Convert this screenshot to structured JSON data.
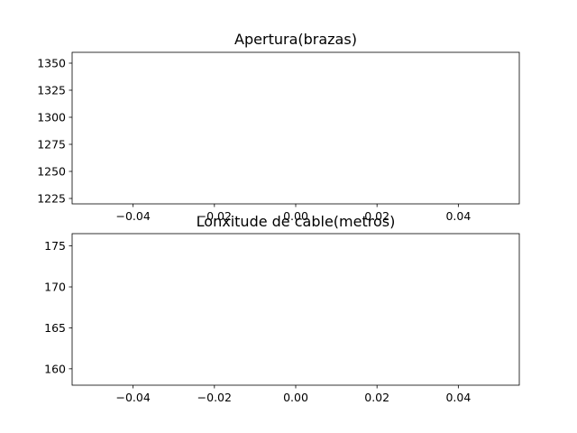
{
  "chart_data": [
    {
      "type": "scatter",
      "title": "Apertura(brazas)",
      "xlabel": "",
      "ylabel": "",
      "x": [],
      "values": [],
      "xlim": [
        -0.055,
        0.055
      ],
      "ylim": [
        1220,
        1360
      ],
      "xticks": [
        -0.04,
        -0.02,
        0.0,
        0.02,
        0.04
      ],
      "xtick_labels": [
        "−0.04",
        "−0.02",
        "0.00",
        "0.02",
        "0.04"
      ],
      "yticks": [
        1225,
        1250,
        1275,
        1300,
        1325,
        1350
      ],
      "ytick_labels": [
        "1225",
        "1250",
        "1275",
        "1300",
        "1325",
        "1350"
      ],
      "grid": false,
      "legend": "none"
    },
    {
      "type": "scatter",
      "title": "Lonxitude de cable(metros)",
      "xlabel": "",
      "ylabel": "",
      "x": [],
      "values": [],
      "xlim": [
        -0.055,
        0.055
      ],
      "ylim": [
        158.0,
        176.5
      ],
      "xticks": [
        -0.04,
        -0.02,
        0.0,
        0.02,
        0.04
      ],
      "xtick_labels": [
        "−0.04",
        "−0.02",
        "0.00",
        "0.02",
        "0.04"
      ],
      "yticks": [
        160,
        165,
        170,
        175
      ],
      "ytick_labels": [
        "160",
        "165",
        "170",
        "175"
      ],
      "grid": false,
      "legend": "none"
    }
  ]
}
